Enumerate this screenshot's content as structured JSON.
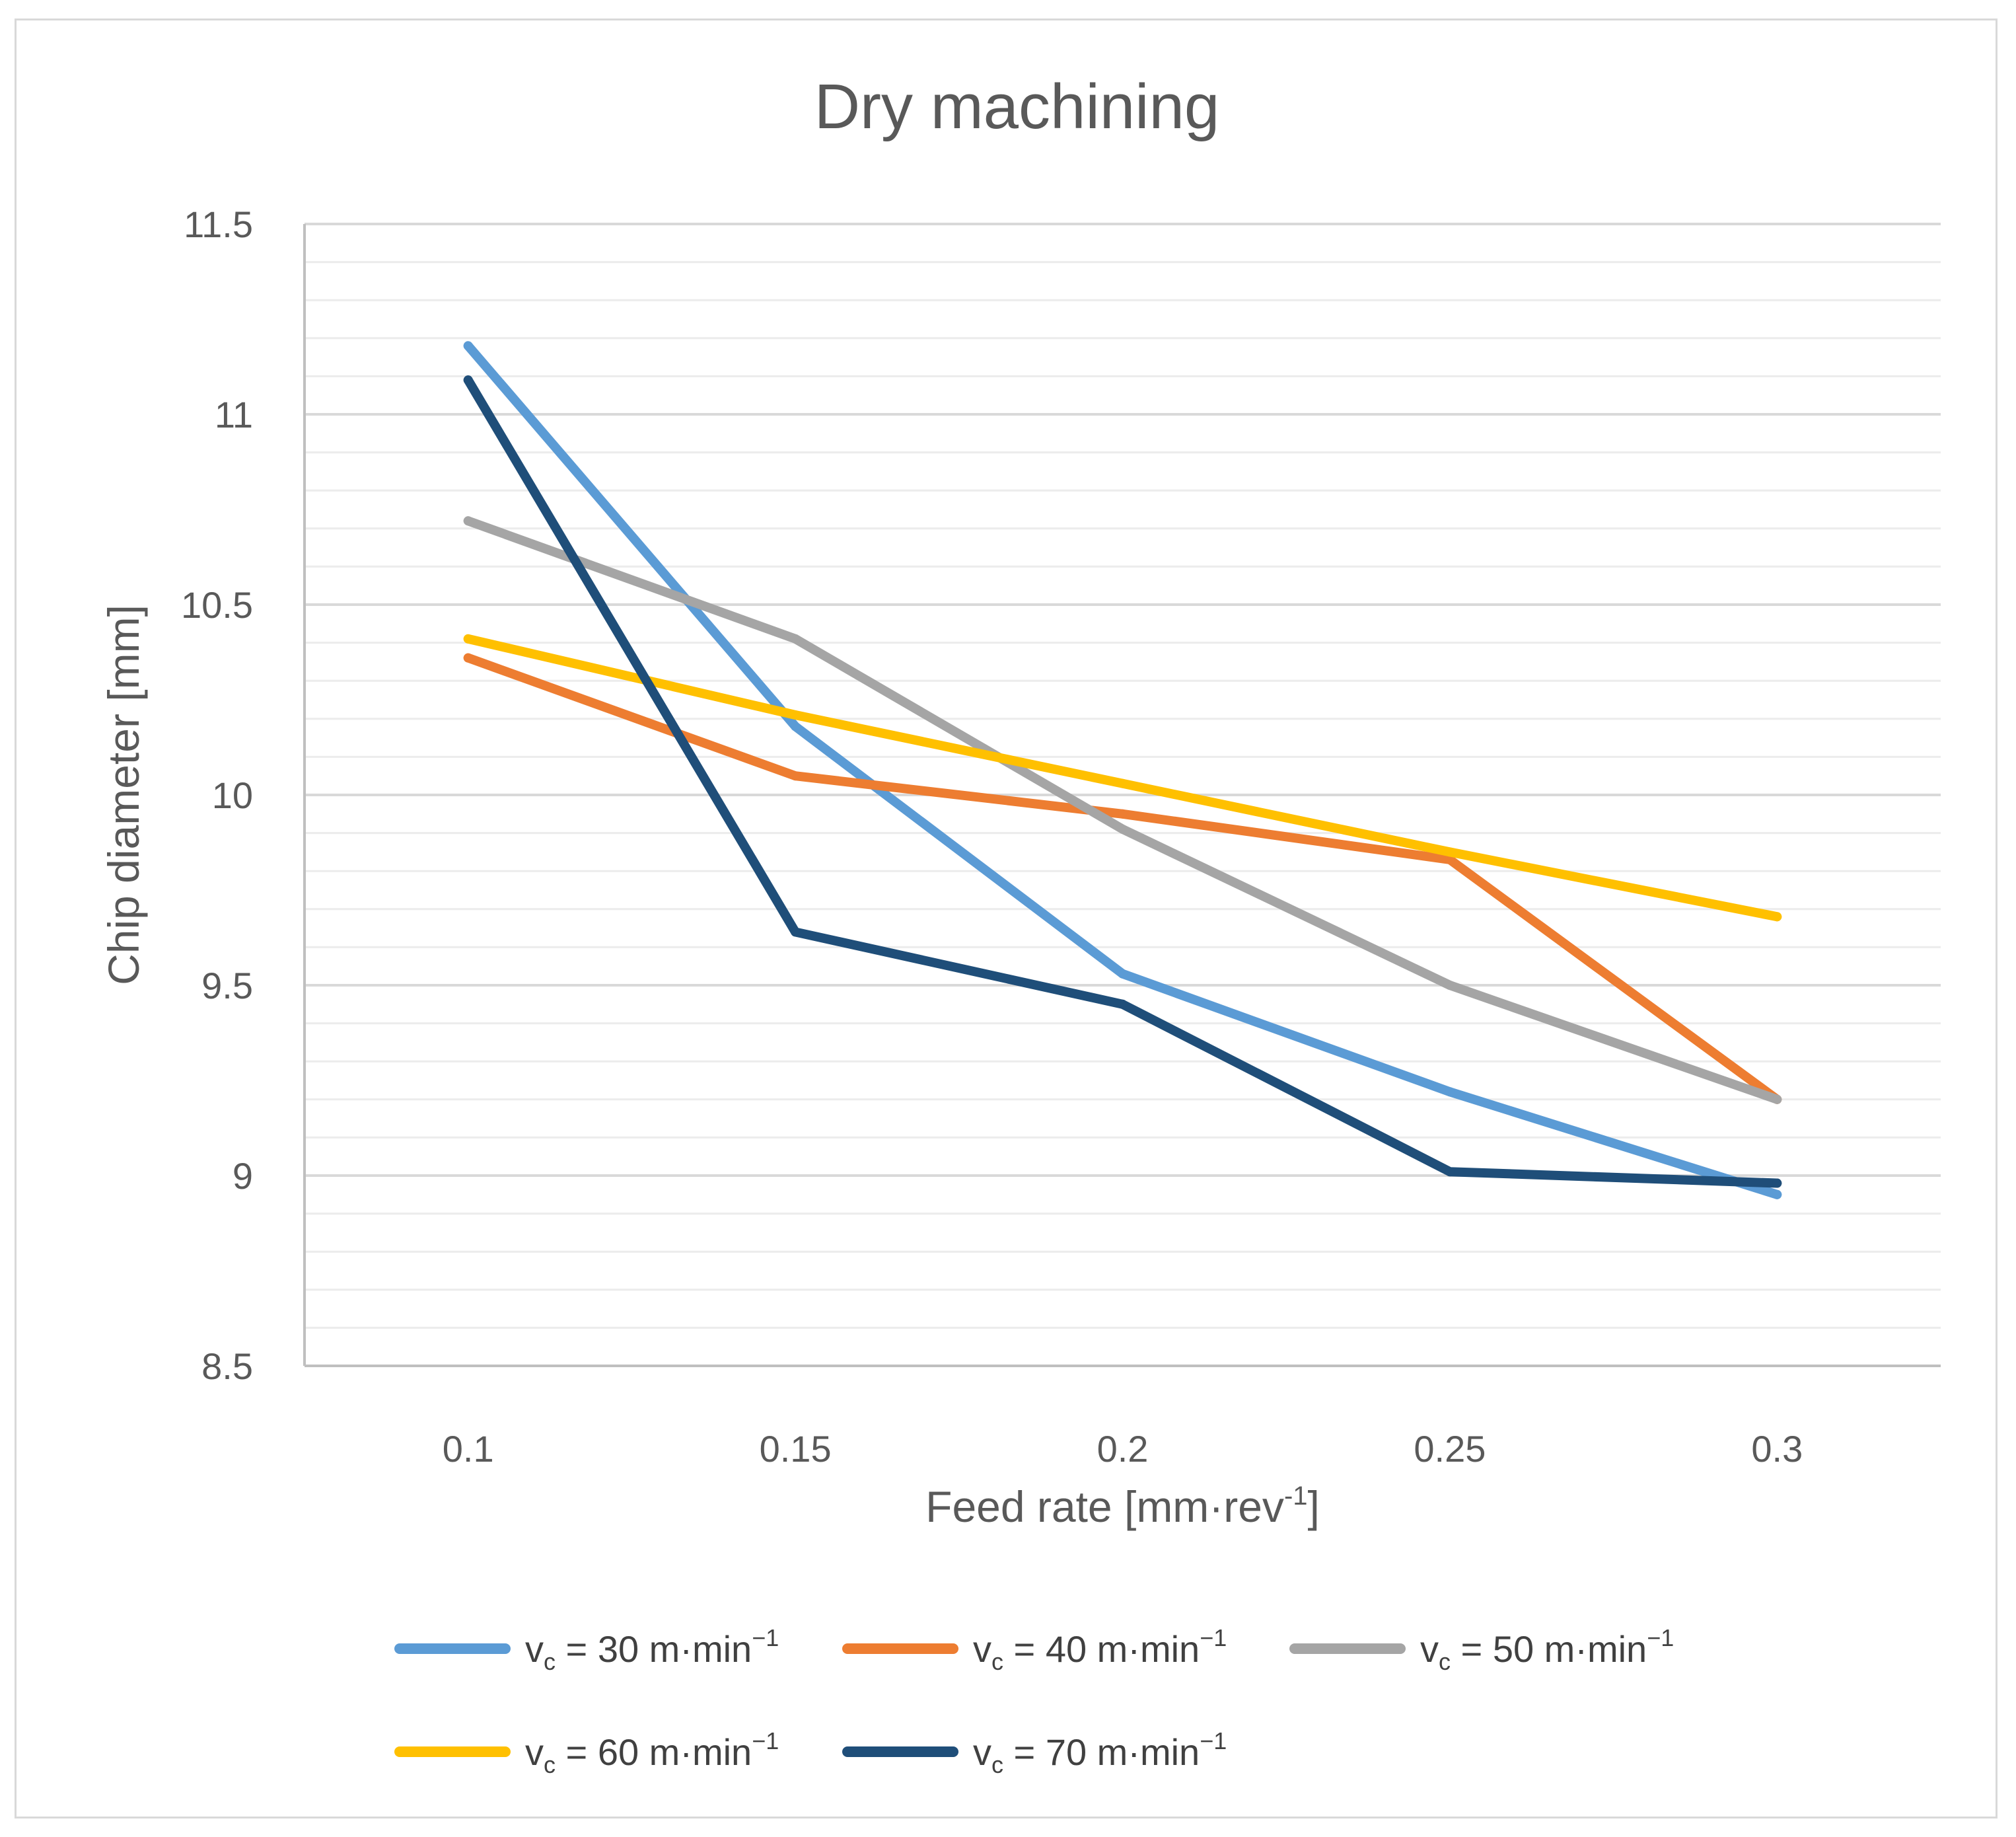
{
  "chart_data": {
    "type": "line",
    "title": "Dry machining",
    "xlabel": "Feed rate [mm·rev",
    "xlabel_sup": "-1",
    "xlabel_end": "]",
    "ylabel": "Chip diameter [mm]",
    "categories": [
      "0.1",
      "0.15",
      "0.2",
      "0.25",
      "0.3"
    ],
    "ylim": [
      8.5,
      11.5
    ],
    "yticks": [
      "8.5",
      "9",
      "9.5",
      "10",
      "10.5",
      "11",
      "11.5"
    ],
    "ytick_values": [
      8.5,
      9,
      9.5,
      10,
      10.5,
      11,
      11.5
    ],
    "minor_step": 0.1,
    "grid": true,
    "legend_position": "bottom",
    "series": [
      {
        "name": "v_c = 30 m·min^−1",
        "prefix": "v",
        "sub": "c",
        "text": " = 30 m·min",
        "sup": "−1",
        "color": "#5B9BD5",
        "values": [
          11.18,
          10.18,
          9.53,
          9.22,
          8.95
        ]
      },
      {
        "name": "v_c = 40 m·min^−1",
        "prefix": "v",
        "sub": "c",
        "text": " = 40 m·min",
        "sup": "−1",
        "color": "#ED7D31",
        "values": [
          10.36,
          10.05,
          9.95,
          9.83,
          9.2
        ]
      },
      {
        "name": "v_c = 50 m·min^−1",
        "prefix": "v",
        "sub": "c",
        "text": " = 50 m·min",
        "sup": "−1",
        "color": "#A5A5A5",
        "values": [
          10.72,
          10.41,
          9.91,
          9.5,
          9.2
        ]
      },
      {
        "name": "v_c = 60 m·min^−1",
        "prefix": "v",
        "sub": "c",
        "text": " = 60 m·min",
        "sup": "−1",
        "color": "#FFC000",
        "values": [
          10.41,
          10.21,
          10.03,
          9.85,
          9.68
        ]
      },
      {
        "name": "v_c = 70 m·min^−1",
        "prefix": "v",
        "sub": "c",
        "text": " = 70 m·min",
        "sup": "−1",
        "color": "#1F4E79",
        "values": [
          11.09,
          9.64,
          9.45,
          9.01,
          8.98
        ]
      }
    ]
  }
}
